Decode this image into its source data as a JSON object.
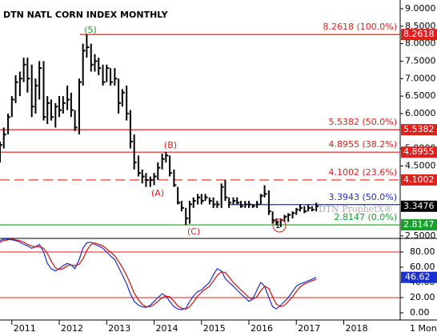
{
  "chart_data": [
    {
      "type": "ohlc",
      "title": "DTN NATL CORN INDEX MONTHLY",
      "watermark": "DTN ProphetX®",
      "color": "#000000",
      "x": [
        2010.75,
        2010.83,
        2010.92,
        2011,
        2011.08,
        2011.17,
        2011.25,
        2011.33,
        2011.42,
        2011.5,
        2011.58,
        2011.67,
        2011.75,
        2011.83,
        2011.92,
        2012,
        2012.08,
        2012.17,
        2012.25,
        2012.33,
        2012.42,
        2012.5,
        2012.58,
        2012.67,
        2012.75,
        2012.83,
        2012.92,
        2013,
        2013.08,
        2013.17,
        2013.25,
        2013.33,
        2013.42,
        2013.5,
        2013.58,
        2013.67,
        2013.75,
        2013.83,
        2013.92,
        2014,
        2014.08,
        2014.17,
        2014.25,
        2014.33,
        2014.42,
        2014.5,
        2014.58,
        2014.67,
        2014.75,
        2014.83,
        2014.92,
        2015,
        2015.08,
        2015.17,
        2015.25,
        2015.33,
        2015.42,
        2015.5,
        2015.58,
        2015.67,
        2015.75,
        2015.83,
        2015.92,
        2016,
        2016.08,
        2016.17,
        2016.25,
        2016.33,
        2016.42,
        2016.5,
        2016.58,
        2016.67,
        2016.75,
        2016.83,
        2016.92,
        2017,
        2017.08,
        2017.17,
        2017.25,
        2017.33,
        2017.42
      ],
      "high": [
        5.2,
        5.6,
        6.0,
        6.5,
        7.1,
        7.2,
        7.6,
        7.6,
        7.4,
        7.0,
        7.5,
        7.5,
        6.5,
        6.4,
        6.3,
        6.5,
        6.5,
        6.8,
        6.6,
        6.1,
        7.0,
        8.0,
        8.26,
        8.0,
        7.7,
        7.6,
        7.4,
        7.4,
        7.3,
        7.3,
        7.0,
        6.7,
        6.8,
        6.1,
        5.4,
        4.8,
        4.4,
        4.3,
        4.2,
        4.3,
        4.6,
        4.85,
        4.9,
        4.8,
        4.4,
        3.9,
        3.5,
        3.3,
        3.5,
        3.6,
        3.7,
        3.7,
        3.7,
        3.6,
        3.6,
        3.5,
        4.0,
        4.1,
        3.6,
        3.6,
        3.6,
        3.5,
        3.5,
        3.5,
        3.4,
        3.5,
        3.7,
        3.95,
        3.8,
        3.2,
        3.0,
        3.0,
        3.1,
        3.15,
        3.2,
        3.3,
        3.4,
        3.35,
        3.4,
        3.35,
        3.45
      ],
      "low": [
        4.6,
        5.0,
        5.4,
        5.9,
        6.3,
        6.5,
        6.9,
        6.6,
        5.9,
        6.0,
        6.4,
        5.8,
        5.7,
        5.8,
        5.6,
        5.9,
        6.0,
        6.1,
        5.9,
        5.5,
        5.4,
        6.8,
        7.6,
        7.2,
        7.2,
        7.1,
        6.8,
        6.9,
        6.8,
        6.8,
        6.0,
        6.2,
        5.8,
        5.0,
        4.4,
        4.2,
        4.0,
        3.9,
        3.9,
        3.95,
        4.1,
        4.4,
        4.6,
        4.2,
        3.9,
        3.4,
        3.2,
        2.81,
        2.85,
        3.3,
        3.4,
        3.4,
        3.5,
        3.4,
        3.3,
        3.3,
        3.3,
        3.5,
        3.3,
        3.4,
        3.4,
        3.3,
        3.3,
        3.3,
        3.3,
        3.3,
        3.4,
        3.6,
        3.1,
        2.85,
        2.8,
        2.75,
        2.9,
        2.9,
        3.0,
        3.1,
        3.2,
        3.15,
        3.2,
        3.2,
        3.2
      ],
      "close": [
        5.1,
        5.4,
        5.9,
        6.4,
        6.9,
        7.0,
        7.4,
        7.0,
        6.2,
        6.8,
        7.3,
        5.9,
        6.3,
        5.9,
        6.2,
        6.1,
        6.3,
        6.4,
        6.1,
        5.6,
        6.9,
        7.8,
        7.9,
        7.4,
        7.5,
        7.3,
        6.9,
        7.3,
        6.9,
        7.0,
        6.3,
        6.6,
        6.0,
        5.2,
        4.6,
        4.3,
        4.2,
        4.1,
        4.1,
        4.2,
        4.45,
        4.7,
        4.8,
        4.3,
        3.95,
        3.45,
        3.3,
        3.0,
        3.4,
        3.5,
        3.6,
        3.5,
        3.6,
        3.5,
        3.4,
        3.4,
        3.9,
        3.6,
        3.45,
        3.5,
        3.45,
        3.35,
        3.4,
        3.4,
        3.35,
        3.4,
        3.65,
        3.7,
        3.2,
        2.95,
        2.9,
        2.95,
        3.05,
        3.1,
        3.15,
        3.25,
        3.3,
        3.2,
        3.3,
        3.25,
        3.3476
      ],
      "xlim": [
        2010.75,
        2019.19
      ],
      "ylim": [
        2.45,
        9.25
      ],
      "yticks": [
        {
          "value": 9.0,
          "label": "9.0000"
        },
        {
          "value": 8.5,
          "label": "8.5000"
        },
        {
          "value": 8.0,
          "label": "8.0000"
        },
        {
          "value": 7.5,
          "label": "7.5000"
        },
        {
          "value": 7.0,
          "label": "7.0000"
        },
        {
          "value": 6.5,
          "label": "6.5000"
        },
        {
          "value": 6.0,
          "label": "6.0000"
        },
        {
          "value": 5.0,
          "label": "5.0000"
        },
        {
          "value": 4.5,
          "label": "4.5000"
        },
        {
          "value": 2.5,
          "label": "2.5000"
        }
      ],
      "levels": [
        {
          "value": 8.2618,
          "label": "8.2618 (100.0%)",
          "box_label": "8.2618",
          "color": "#e0201b",
          "dashed": false
        },
        {
          "value": 5.5382,
          "label": "5.5382 (50.0%)",
          "box_label": "5.5382",
          "color": "#e0201b",
          "dashed": false
        },
        {
          "value": 4.8955,
          "label": "4.8955 (38.2%)",
          "box_label": "4.8955",
          "color": "#e0201b",
          "dashed": false
        },
        {
          "value": 4.1002,
          "label": "4.1002 (23.6%)",
          "box_label": "4.1002",
          "color": "#e0201b",
          "dashed": true
        },
        {
          "value": 3.3943,
          "label": "3.3943 (50.0%)",
          "color": "#1a2fd0",
          "dashed": false
        },
        {
          "value": 2.8147,
          "label": "2.8147 (0.0%)",
          "box_label": "2.8147",
          "color": "#17a02a",
          "dashed": false
        }
      ],
      "annotations": [
        {
          "text": "(5)",
          "color": "#17a02a"
        },
        {
          "text": "(B)",
          "color": "#e0201b"
        },
        {
          "text": "(A)",
          "color": "#e0201b"
        },
        {
          "text": "(C)",
          "color": "#e0201b"
        },
        {
          "text": "1",
          "color": "#000000"
        }
      ]
    },
    {
      "type": "line",
      "period_label": "1 Mon",
      "x": [
        2010.75,
        2010.83,
        2010.92,
        2011,
        2011.08,
        2011.17,
        2011.25,
        2011.33,
        2011.42,
        2011.5,
        2011.58,
        2011.67,
        2011.75,
        2011.83,
        2011.92,
        2012,
        2012.08,
        2012.17,
        2012.25,
        2012.33,
        2012.42,
        2012.5,
        2012.58,
        2012.67,
        2012.75,
        2012.83,
        2012.92,
        2013,
        2013.08,
        2013.17,
        2013.25,
        2013.33,
        2013.42,
        2013.5,
        2013.58,
        2013.67,
        2013.75,
        2013.83,
        2013.92,
        2014,
        2014.08,
        2014.17,
        2014.25,
        2014.33,
        2014.42,
        2014.5,
        2014.58,
        2014.67,
        2014.75,
        2014.83,
        2014.92,
        2015,
        2015.08,
        2015.17,
        2015.25,
        2015.33,
        2015.42,
        2015.5,
        2015.58,
        2015.67,
        2015.75,
        2015.83,
        2015.92,
        2016,
        2016.08,
        2016.17,
        2016.25,
        2016.33,
        2016.42,
        2016.5,
        2016.58,
        2016.67,
        2016.75,
        2016.83,
        2016.92,
        2017,
        2017.08,
        2017.17,
        2017.25,
        2017.33,
        2017.42
      ],
      "series": [
        {
          "color": "#1a2fd0",
          "values": [
            95,
            97,
            97,
            96,
            95,
            93,
            90,
            88,
            85,
            87,
            90,
            80,
            65,
            58,
            55,
            58,
            62,
            65,
            63,
            58,
            70,
            85,
            92,
            93,
            90,
            88,
            85,
            80,
            75,
            70,
            60,
            50,
            38,
            25,
            15,
            10,
            8,
            7,
            10,
            15,
            20,
            25,
            22,
            15,
            8,
            5,
            4,
            6,
            15,
            22,
            28,
            30,
            35,
            40,
            50,
            58,
            55,
            45,
            40,
            35,
            30,
            25,
            20,
            15,
            18,
            30,
            40,
            35,
            20,
            8,
            5,
            10,
            15,
            20,
            28,
            35,
            38,
            40,
            42,
            44,
            46.62
          ]
        },
        {
          "color": "#d01010",
          "values": [
            93,
            95,
            96,
            97,
            96,
            95,
            93,
            90,
            88,
            87,
            87,
            85,
            78,
            68,
            59,
            57,
            58,
            62,
            63,
            62,
            64,
            71,
            82,
            90,
            92,
            90,
            88,
            84,
            80,
            75,
            68,
            60,
            49,
            38,
            26,
            17,
            11,
            8,
            8,
            11,
            15,
            20,
            22,
            21,
            15,
            9,
            6,
            5,
            8,
            14,
            22,
            27,
            31,
            35,
            42,
            49,
            54,
            53,
            47,
            40,
            35,
            30,
            25,
            20,
            18,
            21,
            29,
            35,
            32,
            21,
            11,
            8,
            10,
            15,
            21,
            28,
            34,
            38,
            40,
            42,
            44
          ]
        }
      ],
      "ref_lines": [
        80,
        20
      ],
      "ref_color": "#e0201b",
      "xlim": [
        2010.75,
        2019.19
      ],
      "ylim": [
        -9.5,
        95.8
      ],
      "yticks": [
        {
          "value": 80,
          "label": "80.00"
        },
        {
          "value": 60,
          "label": "60.00"
        },
        {
          "value": 40,
          "label": "40.00"
        },
        {
          "value": 20,
          "label": "20.00"
        },
        {
          "value": 0,
          "label": "0.00"
        }
      ],
      "xticks": [
        2011,
        2012,
        2013,
        2014,
        2015,
        2016,
        2017,
        2018
      ]
    }
  ]
}
